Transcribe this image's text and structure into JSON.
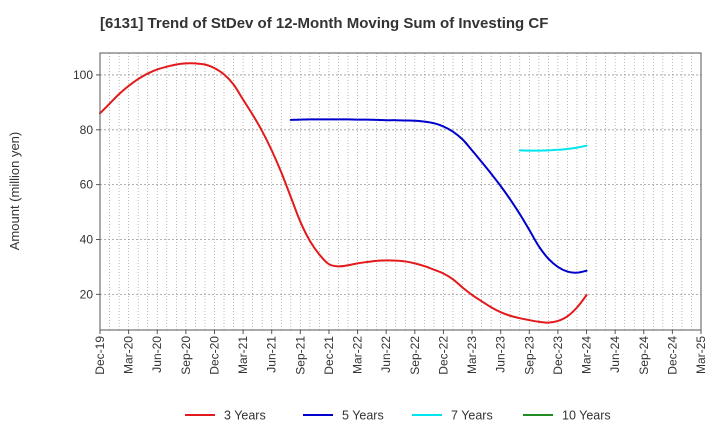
{
  "chart_data": {
    "type": "line",
    "title": "[6131]  Trend of StDev of 12-Month Moving Sum of Investing CF",
    "xlabel": "",
    "ylabel": "Amount (million yen)",
    "ylim": [
      7,
      108
    ],
    "y_ticks": [
      20,
      40,
      60,
      80,
      100
    ],
    "x_ticks": [
      "Dec-19",
      "Mar-20",
      "Jun-20",
      "Sep-20",
      "Dec-20",
      "Mar-21",
      "Jun-21",
      "Sep-21",
      "Dec-21",
      "Mar-22",
      "Jun-22",
      "Sep-22",
      "Dec-22",
      "Mar-23",
      "Jun-23",
      "Sep-23",
      "Dec-23",
      "Mar-24",
      "Jun-24",
      "Sep-24",
      "Dec-24",
      "Mar-25"
    ],
    "grid": true,
    "legend_position": "bottom",
    "series": [
      {
        "name": "3 Years",
        "color": "#e31a1c",
        "x": [
          "Dec-19",
          "Jan-20",
          "Feb-20",
          "Mar-20",
          "Apr-20",
          "May-20",
          "Jun-20",
          "Jul-20",
          "Aug-20",
          "Sep-20",
          "Oct-20",
          "Nov-20",
          "Dec-20",
          "Jan-21",
          "Feb-21",
          "Mar-21",
          "Apr-21",
          "May-21",
          "Jun-21",
          "Jul-21",
          "Aug-21",
          "Sep-21",
          "Oct-21",
          "Nov-21",
          "Dec-21",
          "Jan-22",
          "Feb-22",
          "Mar-22",
          "Apr-22",
          "May-22",
          "Jun-22",
          "Jul-22",
          "Aug-22",
          "Sep-22",
          "Oct-22",
          "Nov-22",
          "Dec-22",
          "Jan-23",
          "Feb-23",
          "Mar-23",
          "Apr-23",
          "May-23",
          "Jun-23",
          "Jul-23",
          "Aug-23",
          "Sep-23",
          "Oct-23",
          "Nov-23",
          "Dec-23",
          "Jan-24",
          "Feb-24",
          "Mar-24"
        ],
        "values": [
          86,
          89.5,
          93,
          96,
          98.5,
          100.5,
          102,
          103,
          103.8,
          104.2,
          104.2,
          103.8,
          102.5,
          100.2,
          96.5,
          91,
          85.5,
          79.5,
          72.5,
          64.5,
          55.5,
          46.5,
          39.5,
          34.5,
          31,
          30.2,
          30.6,
          31.3,
          31.8,
          32.2,
          32.4,
          32.3,
          32,
          31.3,
          30.3,
          29,
          27.6,
          25.5,
          22.5,
          19.8,
          17.5,
          15.3,
          13.5,
          12.2,
          11.3,
          10.6,
          10,
          9.7,
          10.3,
          12,
          15.2,
          19.7
        ]
      },
      {
        "name": "5 Years",
        "color": "#0000cc",
        "x": [
          "Aug-21",
          "Sep-21",
          "Oct-21",
          "Nov-21",
          "Dec-21",
          "Jan-22",
          "Feb-22",
          "Mar-22",
          "Apr-22",
          "May-22",
          "Jun-22",
          "Jul-22",
          "Aug-22",
          "Sep-22",
          "Oct-22",
          "Nov-22",
          "Dec-22",
          "Jan-23",
          "Feb-23",
          "Mar-23",
          "Apr-23",
          "May-23",
          "Jun-23",
          "Jul-23",
          "Aug-23",
          "Sep-23",
          "Oct-23",
          "Nov-23",
          "Dec-23",
          "Jan-24",
          "Feb-24",
          "Mar-24"
        ],
        "values": [
          83.6,
          83.7,
          83.8,
          83.8,
          83.8,
          83.8,
          83.8,
          83.7,
          83.7,
          83.6,
          83.5,
          83.5,
          83.4,
          83.3,
          83,
          82.4,
          81.2,
          79.3,
          76.5,
          72.5,
          68.3,
          64,
          59.5,
          54.6,
          49.3,
          43.5,
          37.5,
          33,
          30,
          28.3,
          27.9,
          28.6
        ]
      },
      {
        "name": "7 Years",
        "color": "#00e5ee",
        "x": [
          "Aug-23",
          "Sep-23",
          "Oct-23",
          "Nov-23",
          "Dec-23",
          "Jan-24",
          "Feb-24",
          "Mar-24"
        ],
        "values": [
          72.5,
          72.4,
          72.4,
          72.5,
          72.7,
          73,
          73.5,
          74.2
        ]
      },
      {
        "name": "10 Years",
        "color": "#228b22",
        "x": [],
        "values": []
      }
    ]
  }
}
